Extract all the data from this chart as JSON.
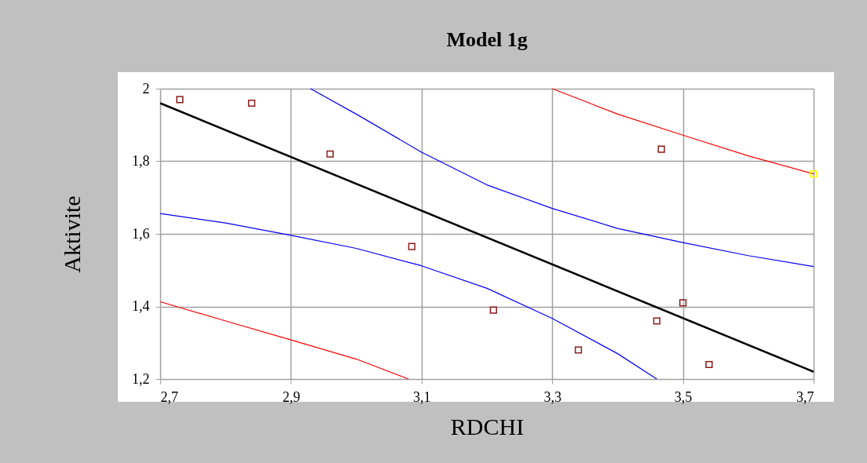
{
  "chart_data": {
    "type": "scatter",
    "title": "Model 1g",
    "xlabel": "RDCHI",
    "ylabel": "Aktivite",
    "xlim": [
      2.7,
      3.7
    ],
    "ylim": [
      1.2,
      2
    ],
    "xticks": [
      {
        "value": 2.7,
        "label": "2,7"
      },
      {
        "value": 2.9,
        "label": "2,9"
      },
      {
        "value": 3.1,
        "label": "3,1"
      },
      {
        "value": 3.3,
        "label": "3,3"
      },
      {
        "value": 3.5,
        "label": "3,5"
      },
      {
        "value": 3.7,
        "label": "3,7"
      }
    ],
    "yticks": [
      {
        "value": 1.2,
        "label": "1,2"
      },
      {
        "value": 1.4,
        "label": "1,4"
      },
      {
        "value": 1.6,
        "label": "1,6"
      },
      {
        "value": 1.8,
        "label": "1,8"
      },
      2
    ],
    "grid": true,
    "marker": "square",
    "series": [
      {
        "type": "line",
        "marker": "none",
        "color": "#ff0000",
        "x": [
          2.7,
          2.8,
          2.9,
          3.0,
          3.08
        ],
        "values": [
          1.413,
          1.36,
          1.308,
          1.255,
          1.2
        ]
      },
      {
        "type": "line",
        "marker": "none",
        "color": "#ff0000",
        "x": [
          3.3,
          3.4,
          3.5,
          3.6,
          3.7
        ],
        "values": [
          2.0,
          1.93,
          1.872,
          1.815,
          1.765
        ]
      },
      {
        "type": "line",
        "marker": "none",
        "color": "#0000ff",
        "x": [
          2.7,
          2.8,
          2.9,
          3.0,
          3.1,
          3.2,
          3.3,
          3.4,
          3.46
        ],
        "values": [
          1.656,
          1.63,
          1.596,
          1.56,
          1.512,
          1.45,
          1.367,
          1.27,
          1.2
        ]
      },
      {
        "type": "line",
        "marker": "none",
        "color": "#0000ff",
        "x": [
          2.93,
          3.0,
          3.1,
          3.2,
          3.3,
          3.4,
          3.5,
          3.6,
          3.7
        ],
        "values": [
          2.0,
          1.93,
          1.825,
          1.735,
          1.67,
          1.615,
          1.576,
          1.54,
          1.51
        ]
      },
      {
        "type": "line",
        "marker": "none",
        "color": "#000000",
        "x": [
          2.7,
          3.7
        ],
        "values": [
          1.96,
          1.22
        ]
      },
      {
        "color": "#8b1a1a",
        "x": [
          2.73,
          2.84,
          2.96,
          3.085,
          3.21,
          3.34,
          3.46,
          3.467,
          3.5,
          3.54
        ],
        "values": [
          1.97,
          1.96,
          1.82,
          1.565,
          1.39,
          1.28,
          1.36,
          1.833,
          1.41,
          1.24
        ]
      },
      {
        "color": "#ffff00",
        "x": [
          3.7
        ],
        "values": [
          1.765
        ]
      }
    ]
  }
}
